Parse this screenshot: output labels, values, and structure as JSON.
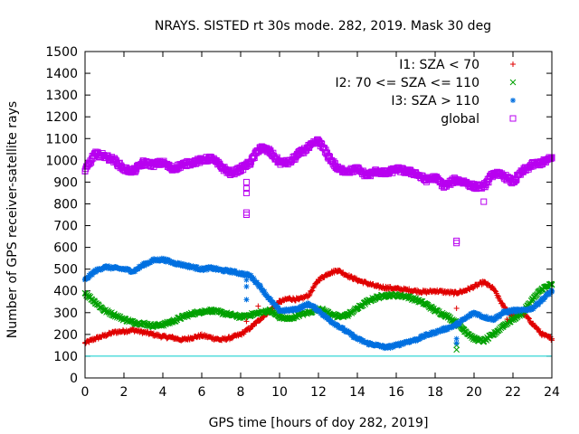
{
  "chart_data": {
    "type": "scatter",
    "title": "NRAYS. SISTED rt 30s mode. 282, 2019. Mask 30 deg",
    "xlabel": "GPS time [hours of doy 282, 2019]",
    "ylabel": "Number of GPS receiver-satellite rays",
    "xlim": [
      0,
      24
    ],
    "ylim": [
      0,
      1500
    ],
    "xticks": [
      "0",
      "2",
      "4",
      "6",
      "8",
      "10",
      "12",
      "14",
      "16",
      "18",
      "20",
      "22",
      "24"
    ],
    "yticks": [
      "0",
      "100",
      "200",
      "300",
      "400",
      "500",
      "600",
      "700",
      "800",
      "900",
      "1000",
      "1100",
      "1200",
      "1300",
      "1400",
      "1500"
    ],
    "reference_line": {
      "y": 100,
      "color": "#00cccc"
    },
    "legend_position": "top-right",
    "series": [
      {
        "name": "I1: SZA < 70",
        "marker": "+",
        "color": "#e00000",
        "x": [
          0,
          0.5,
          1,
          1.5,
          2,
          2.5,
          3,
          3.5,
          4,
          4.5,
          5,
          5.5,
          6,
          6.5,
          7,
          7.5,
          8,
          8.5,
          9,
          9.5,
          10,
          10.5,
          11,
          11.5,
          12,
          12.5,
          13,
          13.5,
          14,
          14.5,
          15,
          15.5,
          16,
          16.5,
          17,
          17.5,
          18,
          18.5,
          19,
          19.5,
          20,
          20.5,
          21,
          21.5,
          22,
          22.5,
          23,
          23.5,
          24
        ],
        "y": [
          160,
          180,
          195,
          210,
          215,
          220,
          210,
          200,
          190,
          185,
          175,
          185,
          195,
          185,
          175,
          185,
          200,
          230,
          270,
          310,
          350,
          365,
          360,
          380,
          450,
          480,
          495,
          470,
          450,
          435,
          420,
          415,
          410,
          405,
          400,
          395,
          400,
          395,
          390,
          400,
          420,
          440,
          410,
          330,
          280,
          300,
          250,
          200,
          180
        ]
      },
      {
        "name": "I2: 70 <= SZA <= 110",
        "marker": "x",
        "color": "#00a000",
        "x": [
          0,
          0.5,
          1,
          1.5,
          2,
          2.5,
          3,
          3.5,
          4,
          4.5,
          5,
          5.5,
          6,
          6.5,
          7,
          7.5,
          8,
          8.5,
          9,
          9.5,
          10,
          10.5,
          11,
          11.5,
          12,
          12.5,
          13,
          13.5,
          14,
          14.5,
          15,
          15.5,
          16,
          16.5,
          17,
          17.5,
          18,
          18.5,
          19,
          19.5,
          20,
          20.5,
          21,
          21.5,
          22,
          22.5,
          23,
          23.5,
          24
        ],
        "y": [
          390,
          350,
          310,
          290,
          270,
          255,
          250,
          240,
          245,
          260,
          280,
          295,
          305,
          310,
          300,
          290,
          280,
          290,
          300,
          310,
          280,
          270,
          290,
          300,
          320,
          300,
          280,
          290,
          320,
          350,
          370,
          380,
          380,
          375,
          360,
          340,
          310,
          290,
          260,
          220,
          180,
          170,
          200,
          240,
          270,
          300,
          360,
          410,
          430
        ]
      },
      {
        "name": "I3: SZA > 110",
        "marker": "*",
        "color": "#0070e0",
        "x": [
          0,
          0.5,
          1,
          1.5,
          2,
          2.5,
          3,
          3.5,
          4,
          4.5,
          5,
          5.5,
          6,
          6.5,
          7,
          7.5,
          8,
          8.5,
          9,
          9.5,
          10,
          10.5,
          11,
          11.5,
          12,
          12.5,
          13,
          13.5,
          14,
          14.5,
          15,
          15.5,
          16,
          16.5,
          17,
          17.5,
          18,
          18.5,
          19,
          19.5,
          20,
          20.5,
          21,
          21.5,
          22,
          22.5,
          23,
          23.5,
          24
        ],
        "y": [
          450,
          490,
          510,
          505,
          500,
          490,
          520,
          540,
          545,
          530,
          520,
          510,
          500,
          505,
          495,
          490,
          480,
          470,
          420,
          360,
          310,
          310,
          320,
          340,
          310,
          270,
          240,
          210,
          180,
          160,
          150,
          140,
          150,
          165,
          175,
          195,
          210,
          225,
          240,
          270,
          300,
          280,
          270,
          300,
          310,
          310,
          320,
          360,
          400
        ]
      },
      {
        "name": "global",
        "marker": "square",
        "color": "#b800f0",
        "x": [
          0,
          0.5,
          1,
          1.5,
          2,
          2.5,
          3,
          3.5,
          4,
          4.5,
          5,
          5.5,
          6,
          6.5,
          7,
          7.5,
          8,
          8.5,
          9,
          9.5,
          10,
          10.5,
          11,
          11.5,
          12,
          12.5,
          13,
          13.5,
          14,
          14.5,
          15,
          15.5,
          16,
          16.5,
          17,
          17.5,
          18,
          18.5,
          19,
          19.5,
          20,
          20.5,
          21,
          21.5,
          22,
          22.5,
          23,
          23.5,
          24
        ],
        "y": [
          950,
          1030,
          1020,
          1000,
          960,
          950,
          990,
          980,
          990,
          960,
          980,
          990,
          1000,
          1010,
          970,
          940,
          960,
          990,
          1060,
          1040,
          990,
          990,
          1030,
          1060,
          1090,
          1020,
          960,
          950,
          960,
          930,
          950,
          940,
          960,
          950,
          940,
          910,
          920,
          880,
          910,
          900,
          880,
          880,
          940,
          930,
          900,
          950,
          980,
          990,
          1010
        ]
      }
    ],
    "outliers": {
      "I1: SZA < 70": [
        [
          8.3,
          260
        ],
        [
          8.9,
          330
        ],
        [
          19.1,
          320
        ],
        [
          21.7,
          270
        ]
      ],
      "I2: 70 <= SZA <= 110": [
        [
          19.1,
          130
        ],
        [
          19.1,
          150
        ]
      ],
      "I3: SZA > 110": [
        [
          8.3,
          360
        ],
        [
          8.3,
          420
        ],
        [
          8.3,
          450
        ],
        [
          19.1,
          160
        ],
        [
          19.1,
          180
        ]
      ],
      "global": [
        [
          8.3,
          750
        ],
        [
          8.3,
          760
        ],
        [
          8.3,
          850
        ],
        [
          8.3,
          870
        ],
        [
          19.1,
          620
        ],
        [
          19.1,
          630
        ],
        [
          20.5,
          810
        ],
        [
          8.3,
          900
        ]
      ]
    }
  }
}
